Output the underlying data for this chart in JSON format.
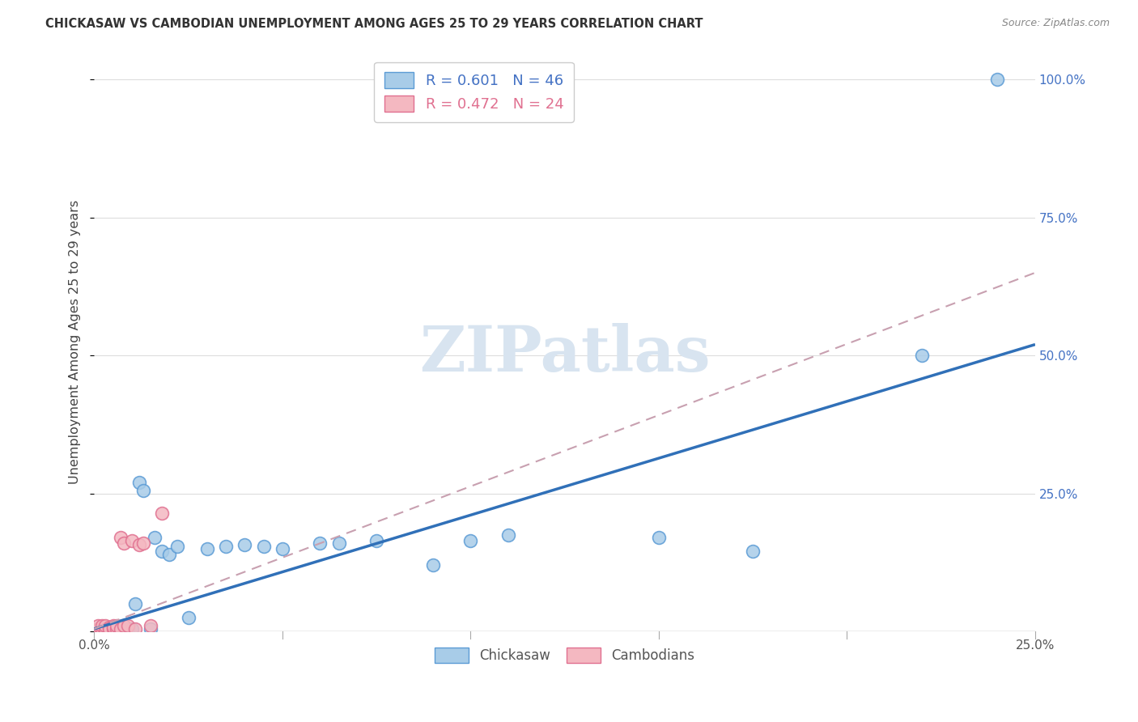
{
  "title": "CHICKASAW VS CAMBODIAN UNEMPLOYMENT AMONG AGES 25 TO 29 YEARS CORRELATION CHART",
  "source": "Source: ZipAtlas.com",
  "ylabel": "Unemployment Among Ages 25 to 29 years",
  "xlim": [
    0.0,
    0.25
  ],
  "ylim": [
    0.0,
    1.05
  ],
  "xticks": [
    0.0,
    0.05,
    0.1,
    0.15,
    0.2,
    0.25
  ],
  "xticklabels": [
    "0.0%",
    "",
    "",
    "",
    "",
    "25.0%"
  ],
  "yticks": [
    0.0,
    0.25,
    0.5,
    0.75,
    1.0
  ],
  "yticklabels_right": [
    "",
    "25.0%",
    "50.0%",
    "75.0%",
    "100.0%"
  ],
  "chickasaw_R": 0.601,
  "chickasaw_N": 46,
  "cambodian_R": 0.472,
  "cambodian_N": 24,
  "chickasaw_color": "#a8cce8",
  "cambodian_color": "#f4b8c1",
  "chickasaw_edge_color": "#5b9bd5",
  "cambodian_edge_color": "#e07090",
  "chickasaw_line_color": "#3070b8",
  "cambodian_line_color": "#c8a0b0",
  "grid_color": "#dddddd",
  "tick_color": "#aaaaaa",
  "title_color": "#333333",
  "source_color": "#888888",
  "right_axis_color": "#4472c4",
  "watermark_color": "#d8e4f0",
  "chickasaw_x": [
    0.001,
    0.001,
    0.002,
    0.002,
    0.002,
    0.003,
    0.003,
    0.003,
    0.004,
    0.004,
    0.005,
    0.005,
    0.005,
    0.006,
    0.006,
    0.006,
    0.007,
    0.007,
    0.008,
    0.008,
    0.009,
    0.01,
    0.011,
    0.012,
    0.013,
    0.015,
    0.016,
    0.018,
    0.02,
    0.022,
    0.025,
    0.03,
    0.035,
    0.04,
    0.045,
    0.05,
    0.06,
    0.065,
    0.075,
    0.09,
    0.1,
    0.11,
    0.15,
    0.175,
    0.22,
    0.24
  ],
  "chickasaw_y": [
    0.005,
    0.003,
    0.005,
    0.003,
    0.008,
    0.005,
    0.003,
    0.008,
    0.005,
    0.002,
    0.005,
    0.008,
    0.003,
    0.005,
    0.003,
    0.008,
    0.005,
    0.003,
    0.003,
    0.01,
    0.005,
    0.005,
    0.05,
    0.27,
    0.255,
    0.005,
    0.17,
    0.145,
    0.14,
    0.155,
    0.025,
    0.15,
    0.155,
    0.158,
    0.155,
    0.15,
    0.16,
    0.16,
    0.165,
    0.12,
    0.165,
    0.175,
    0.17,
    0.145,
    0.5,
    1.0
  ],
  "cambodian_x": [
    0.001,
    0.001,
    0.002,
    0.002,
    0.003,
    0.003,
    0.004,
    0.004,
    0.005,
    0.005,
    0.005,
    0.006,
    0.006,
    0.007,
    0.007,
    0.008,
    0.008,
    0.009,
    0.01,
    0.011,
    0.012,
    0.013,
    0.015,
    0.018
  ],
  "cambodian_y": [
    0.005,
    0.01,
    0.005,
    0.01,
    0.005,
    0.01,
    0.008,
    0.005,
    0.005,
    0.01,
    0.008,
    0.005,
    0.01,
    0.17,
    0.005,
    0.16,
    0.01,
    0.01,
    0.165,
    0.005,
    0.158,
    0.16,
    0.01,
    0.215
  ],
  "chick_line_x": [
    0.0,
    0.25
  ],
  "chick_line_y": [
    0.005,
    0.52
  ],
  "camb_line_x": [
    0.0,
    0.25
  ],
  "camb_line_y": [
    0.005,
    0.65
  ]
}
